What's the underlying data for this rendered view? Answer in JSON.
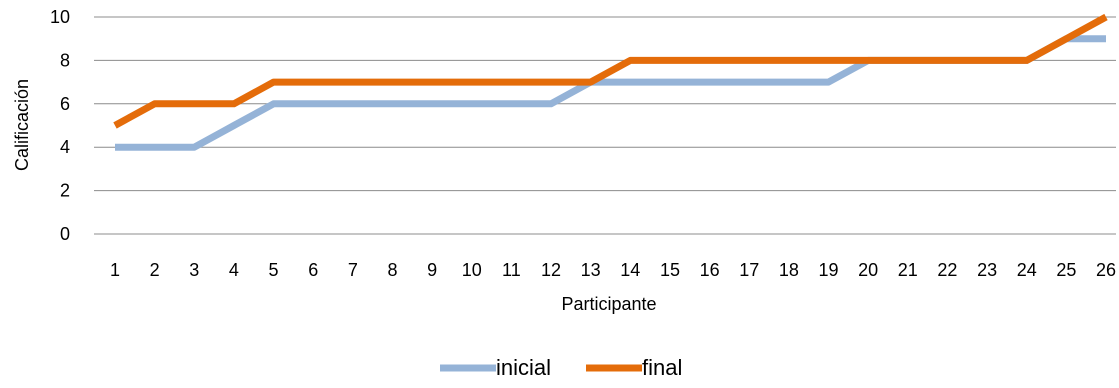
{
  "chart_data": {
    "type": "line",
    "title": "",
    "xlabel": "Participante",
    "ylabel": "Calificación",
    "categories": [
      "1",
      "2",
      "3",
      "4",
      "5",
      "6",
      "7",
      "8",
      "9",
      "10",
      "11",
      "12",
      "13",
      "14",
      "15",
      "16",
      "17",
      "18",
      "19",
      "20",
      "21",
      "22",
      "23",
      "24",
      "25",
      "26"
    ],
    "ylim": [
      0,
      10
    ],
    "yticks": [
      0,
      2,
      4,
      6,
      8,
      10
    ],
    "grid": true,
    "legend": "bottom",
    "series": [
      {
        "name": "inicial",
        "color": "#95b3d7",
        "values": [
          4,
          4,
          4,
          5,
          6,
          6,
          6,
          6,
          6,
          6,
          6,
          6,
          7,
          7,
          7,
          7,
          7,
          7,
          7,
          8,
          8,
          8,
          8,
          8,
          9,
          9
        ]
      },
      {
        "name": "final",
        "color": "#e46c0a",
        "values": [
          5,
          6,
          6,
          6,
          7,
          7,
          7,
          7,
          7,
          7,
          7,
          7,
          7,
          8,
          8,
          8,
          8,
          8,
          8,
          8,
          8,
          8,
          8,
          8,
          9,
          10
        ]
      }
    ]
  }
}
